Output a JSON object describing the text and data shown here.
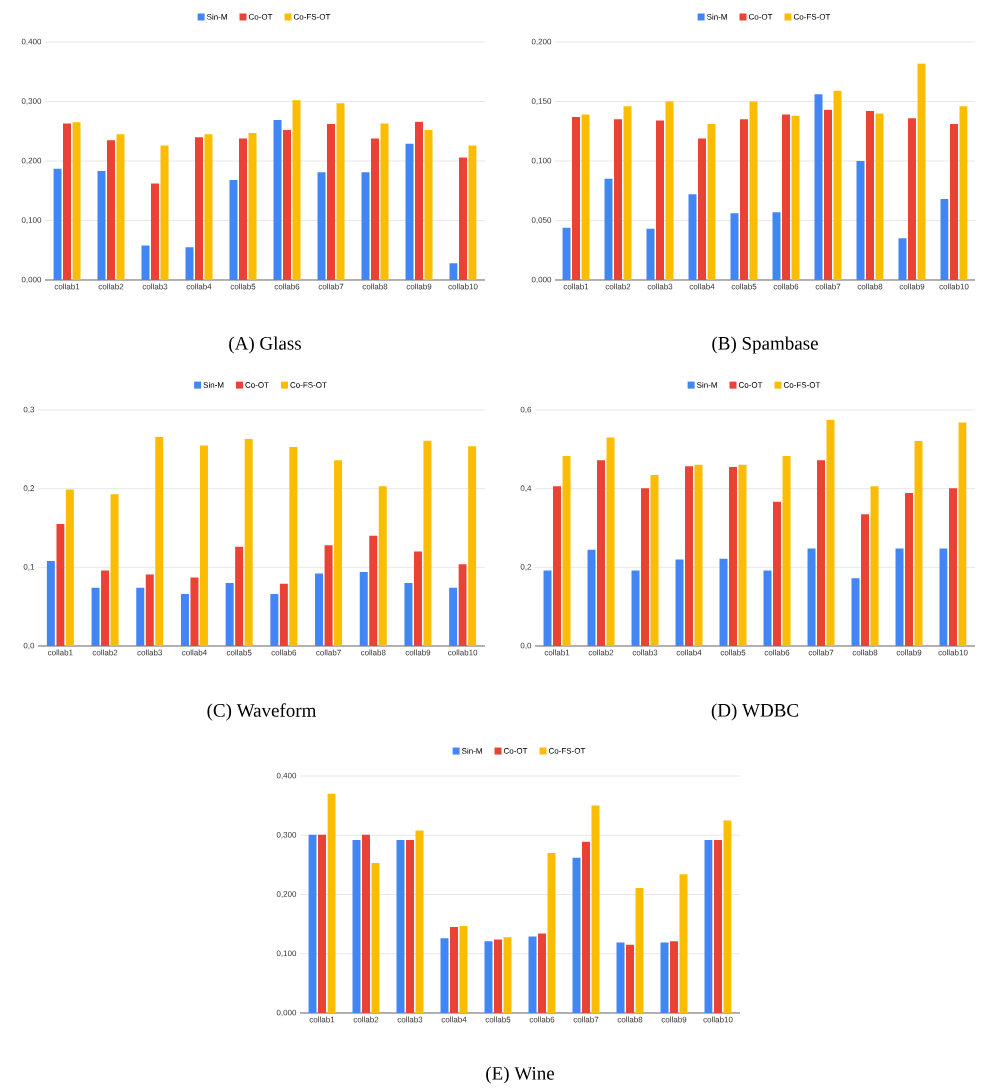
{
  "chart_data": [
    {
      "type": "bar",
      "annotations": [
        "(A) Glass"
      ],
      "categories": [
        "collab1",
        "collab2",
        "collab3",
        "collab4",
        "collab5",
        "collab6",
        "collab7",
        "collab8",
        "collab9",
        "collab10"
      ],
      "series": [
        {
          "name": "Sin-M",
          "color": "#4285f4",
          "values": [
            0.187,
            0.183,
            0.058,
            0.055,
            0.168,
            0.269,
            0.181,
            0.181,
            0.229,
            0.028
          ]
        },
        {
          "name": "Co-OT",
          "color": "#ea4335",
          "values": [
            0.263,
            0.235,
            0.162,
            0.24,
            0.238,
            0.252,
            0.262,
            0.238,
            0.266,
            0.206
          ]
        },
        {
          "name": "Co-FS-OT",
          "color": "#fbbc04",
          "values": [
            0.265,
            0.245,
            0.226,
            0.245,
            0.247,
            0.302,
            0.297,
            0.263,
            0.252,
            0.226
          ]
        }
      ],
      "ylim": [
        0,
        0.4
      ],
      "yticks": [
        {
          "value": 0,
          "label": "0,000"
        },
        {
          "value": 0.1,
          "label": "0,100"
        },
        {
          "value": 0.2,
          "label": "0,200"
        },
        {
          "value": 0.3,
          "label": "0,300"
        },
        {
          "value": 0.4,
          "label": "0,400"
        }
      ],
      "grid": "y",
      "legend": "top"
    },
    {
      "type": "bar",
      "annotations": [
        "(B) Spambase"
      ],
      "categories": [
        "collab1",
        "collab2",
        "collab3",
        "collab4",
        "collab5",
        "collab6",
        "collab7",
        "collab8",
        "collab9",
        "collab10"
      ],
      "series": [
        {
          "name": "Sin-M",
          "color": "#4285f4",
          "values": [
            0.044,
            0.085,
            0.043,
            0.072,
            0.056,
            0.057,
            0.156,
            0.1,
            0.035,
            0.068
          ]
        },
        {
          "name": "Co-OT",
          "color": "#ea4335",
          "values": [
            0.137,
            0.135,
            0.134,
            0.119,
            0.135,
            0.139,
            0.143,
            0.142,
            0.136,
            0.131
          ]
        },
        {
          "name": "Co-FS-OT",
          "color": "#fbbc04",
          "values": [
            0.139,
            0.146,
            0.15,
            0.131,
            0.15,
            0.138,
            0.159,
            0.14,
            0.182,
            0.146
          ]
        }
      ],
      "ylim": [
        0,
        0.2
      ],
      "yticks": [
        {
          "value": 0,
          "label": "0,000"
        },
        {
          "value": 0.05,
          "label": "0,050"
        },
        {
          "value": 0.1,
          "label": "0,100"
        },
        {
          "value": 0.15,
          "label": "0,150"
        },
        {
          "value": 0.2,
          "label": "0,200"
        }
      ],
      "grid": "y",
      "legend": "top"
    },
    {
      "type": "bar",
      "annotations": [
        "(C) Waveform"
      ],
      "categories": [
        "collab1",
        "collab2",
        "collab3",
        "collab4",
        "collab5",
        "collab6",
        "collab7",
        "collab8",
        "collab9",
        "collab10"
      ],
      "series": [
        {
          "name": "Sin-M",
          "color": "#4285f4",
          "values": [
            0.108,
            0.074,
            0.074,
            0.066,
            0.08,
            0.066,
            0.092,
            0.094,
            0.08,
            0.074
          ]
        },
        {
          "name": "Co-OT",
          "color": "#ea4335",
          "values": [
            0.155,
            0.096,
            0.091,
            0.087,
            0.126,
            0.079,
            0.128,
            0.14,
            0.12,
            0.104
          ]
        },
        {
          "name": "Co-FS-OT",
          "color": "#fbbc04",
          "values": [
            0.199,
            0.193,
            0.266,
            0.255,
            0.263,
            0.253,
            0.236,
            0.203,
            0.261,
            0.254
          ]
        }
      ],
      "ylim": [
        0,
        0.3
      ],
      "yticks": [
        {
          "value": 0,
          "label": "0,0"
        },
        {
          "value": 0.1,
          "label": "0,1"
        },
        {
          "value": 0.2,
          "label": "0,2"
        },
        {
          "value": 0.3,
          "label": "0,3"
        }
      ],
      "grid": "y",
      "legend": "top"
    },
    {
      "type": "bar",
      "annotations": [
        "(D) WDBC"
      ],
      "categories": [
        "collab1",
        "collab2",
        "collab3",
        "collab4",
        "collab5",
        "collab6",
        "collab7",
        "collab8",
        "collab9",
        "collab10"
      ],
      "series": [
        {
          "name": "Sin-M",
          "color": "#4285f4",
          "values": [
            0.192,
            0.245,
            0.192,
            0.22,
            0.222,
            0.192,
            0.248,
            0.172,
            0.248,
            0.248
          ]
        },
        {
          "name": "Co-OT",
          "color": "#ea4335",
          "values": [
            0.406,
            0.472,
            0.401,
            0.457,
            0.455,
            0.367,
            0.472,
            0.335,
            0.389,
            0.401
          ]
        },
        {
          "name": "Co-FS-OT",
          "color": "#fbbc04",
          "values": [
            0.483,
            0.53,
            0.435,
            0.461,
            0.461,
            0.483,
            0.575,
            0.406,
            0.521,
            0.568
          ]
        }
      ],
      "ylim": [
        0,
        0.6
      ],
      "yticks": [
        {
          "value": 0,
          "label": "0,0"
        },
        {
          "value": 0.2,
          "label": "0,2"
        },
        {
          "value": 0.4,
          "label": "0,4"
        },
        {
          "value": 0.6,
          "label": "0,6"
        }
      ],
      "grid": "y",
      "legend": "top"
    },
    {
      "type": "bar",
      "annotations": [
        "(E) Wine"
      ],
      "categories": [
        "collab1",
        "collab2",
        "collab3",
        "collab4",
        "collab5",
        "collab6",
        "collab7",
        "collab8",
        "collab9",
        "collab10"
      ],
      "series": [
        {
          "name": "Sin-M",
          "color": "#4285f4",
          "values": [
            0.301,
            0.292,
            0.292,
            0.126,
            0.121,
            0.129,
            0.262,
            0.119,
            0.119,
            0.292
          ]
        },
        {
          "name": "Co-OT",
          "color": "#ea4335",
          "values": [
            0.301,
            0.301,
            0.292,
            0.145,
            0.124,
            0.134,
            0.289,
            0.115,
            0.121,
            0.292
          ]
        },
        {
          "name": "Co-FS-OT",
          "color": "#fbbc04",
          "values": [
            0.37,
            0.253,
            0.308,
            0.147,
            0.128,
            0.27,
            0.35,
            0.211,
            0.234,
            0.325
          ]
        }
      ],
      "ylim": [
        0,
        0.4
      ],
      "yticks": [
        {
          "value": 0,
          "label": "0,000"
        },
        {
          "value": 0.1,
          "label": "0,100"
        },
        {
          "value": 0.2,
          "label": "0,200"
        },
        {
          "value": 0.3,
          "label": "0,300"
        },
        {
          "value": 0.4,
          "label": "0,400"
        }
      ],
      "grid": "y",
      "legend": "top"
    }
  ]
}
